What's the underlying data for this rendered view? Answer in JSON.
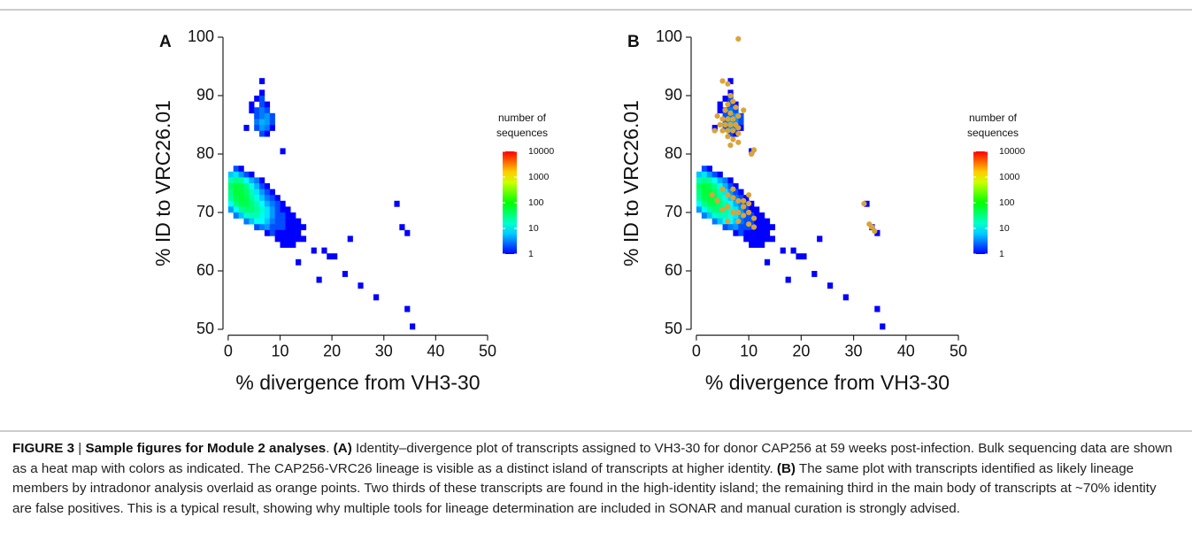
{
  "chart_data": [
    {
      "type": "heatmap",
      "panel_label": "A",
      "xlabel": "% divergence from VH3-30",
      "ylabel": "% ID to VRC26.01",
      "xlim": [
        -1,
        50
      ],
      "ylim": [
        49,
        100
      ],
      "xticks": [
        0,
        10,
        20,
        30,
        40,
        50
      ],
      "yticks": [
        50,
        60,
        70,
        80,
        90,
        100
      ],
      "colorbar_title": [
        "number of",
        "sequences"
      ],
      "color_scale": "log",
      "colorlim": [
        1,
        10000
      ],
      "colorticks": [
        1,
        10,
        100,
        1000,
        10000
      ],
      "cells": {
        "x": [
          1,
          2,
          0,
          1,
          2,
          3,
          4,
          0,
          1,
          2,
          3,
          4,
          5,
          6,
          0,
          1,
          2,
          3,
          4,
          5,
          6,
          7,
          0,
          1,
          2,
          3,
          4,
          5,
          6,
          7,
          8,
          0,
          1,
          2,
          3,
          4,
          5,
          6,
          7,
          8,
          9,
          0,
          1,
          2,
          3,
          4,
          5,
          6,
          7,
          8,
          9,
          10,
          0,
          1,
          2,
          3,
          4,
          5,
          6,
          7,
          8,
          9,
          10,
          11,
          1,
          2,
          3,
          4,
          5,
          6,
          7,
          8,
          9,
          10,
          11,
          12,
          3,
          4,
          5,
          6,
          7,
          8,
          9,
          10,
          11,
          12,
          13,
          5,
          6,
          7,
          8,
          9,
          10,
          11,
          12,
          13,
          14,
          7,
          8,
          9,
          10,
          11,
          12,
          13,
          9,
          10,
          11,
          12,
          13,
          14,
          10,
          11,
          12,
          6,
          6,
          5,
          6,
          4,
          6,
          7,
          4,
          5,
          6,
          7,
          5,
          6,
          7,
          8,
          5,
          6,
          7,
          8,
          3,
          5,
          6,
          7,
          8,
          6,
          7,
          10,
          23,
          16,
          18,
          19,
          20,
          13,
          17,
          22,
          25,
          28,
          32,
          33,
          34,
          34,
          35
        ],
        "y": [
          77,
          77,
          76,
          76,
          76,
          76,
          76,
          75,
          75,
          75,
          75,
          75,
          75,
          75,
          74,
          74,
          74,
          74,
          74,
          74,
          74,
          74,
          73,
          73,
          73,
          73,
          73,
          73,
          73,
          73,
          73,
          72,
          72,
          72,
          72,
          72,
          72,
          72,
          72,
          72,
          72,
          71,
          71,
          71,
          71,
          71,
          71,
          71,
          71,
          71,
          71,
          71,
          70,
          70,
          70,
          70,
          70,
          70,
          70,
          70,
          70,
          70,
          70,
          70,
          69,
          69,
          69,
          69,
          69,
          69,
          69,
          69,
          69,
          69,
          69,
          69,
          68,
          68,
          68,
          68,
          68,
          68,
          68,
          68,
          68,
          68,
          68,
          67,
          67,
          67,
          67,
          67,
          67,
          67,
          67,
          67,
          67,
          66,
          66,
          66,
          66,
          66,
          66,
          66,
          65,
          65,
          65,
          65,
          65,
          65,
          64,
          64,
          64,
          92,
          90,
          89,
          89,
          88,
          88,
          88,
          87,
          87,
          87,
          87,
          86,
          86,
          86,
          86,
          85,
          85,
          85,
          85,
          84,
          84,
          84,
          84,
          84,
          83,
          83,
          80,
          65,
          63,
          63,
          62,
          62,
          61,
          58,
          59,
          57,
          55,
          71,
          67,
          66,
          53,
          50
        ],
        "values": [
          2,
          1,
          6,
          8,
          4,
          2,
          1,
          20,
          30,
          25,
          10,
          5,
          3,
          1,
          40,
          60,
          50,
          30,
          12,
          5,
          2,
          1,
          30,
          60,
          60,
          40,
          20,
          8,
          4,
          2,
          1,
          25,
          50,
          60,
          50,
          25,
          12,
          6,
          3,
          2,
          1,
          10,
          30,
          50,
          50,
          35,
          20,
          10,
          5,
          3,
          2,
          1,
          4,
          10,
          25,
          35,
          35,
          25,
          15,
          8,
          4,
          2,
          1,
          1,
          3,
          6,
          15,
          20,
          20,
          12,
          8,
          4,
          2,
          2,
          1,
          1,
          3,
          6,
          10,
          10,
          6,
          3,
          2,
          2,
          1,
          1,
          1,
          2,
          3,
          4,
          2,
          2,
          2,
          1,
          1,
          1,
          1,
          1,
          2,
          1,
          1,
          1,
          1,
          1,
          1,
          1,
          1,
          1,
          1,
          1,
          1,
          1,
          1,
          1,
          1,
          1,
          2,
          1,
          2,
          1,
          1,
          2,
          3,
          2,
          2,
          3,
          4,
          2,
          3,
          5,
          4,
          2,
          1,
          2,
          4,
          3,
          1,
          2,
          1,
          1,
          1,
          1,
          1,
          1,
          1,
          1,
          1,
          1,
          1,
          1,
          1,
          1,
          1,
          1,
          1
        ]
      }
    },
    {
      "type": "heatmap",
      "panel_label": "B",
      "xlabel": "% divergence from VH3-30",
      "ylabel": "% ID to VRC26.01",
      "xlim": [
        -1,
        50
      ],
      "ylim": [
        49,
        100
      ],
      "xticks": [
        0,
        10,
        20,
        30,
        40,
        50
      ],
      "yticks": [
        50,
        60,
        70,
        80,
        90,
        100
      ],
      "colorbar_title": [
        "number of",
        "sequences"
      ],
      "color_scale": "log",
      "colorlim": [
        1,
        10000
      ],
      "colorticks": [
        1,
        10,
        100,
        1000,
        10000
      ],
      "cells": {
        "x": [
          1,
          2,
          0,
          1,
          2,
          3,
          4,
          0,
          1,
          2,
          3,
          4,
          5,
          6,
          0,
          1,
          2,
          3,
          4,
          5,
          6,
          7,
          0,
          1,
          2,
          3,
          4,
          5,
          6,
          7,
          8,
          0,
          1,
          2,
          3,
          4,
          5,
          6,
          7,
          8,
          9,
          0,
          1,
          2,
          3,
          4,
          5,
          6,
          7,
          8,
          9,
          10,
          0,
          1,
          2,
          3,
          4,
          5,
          6,
          7,
          8,
          9,
          10,
          11,
          1,
          2,
          3,
          4,
          5,
          6,
          7,
          8,
          9,
          10,
          11,
          12,
          3,
          4,
          5,
          6,
          7,
          8,
          9,
          10,
          11,
          12,
          13,
          5,
          6,
          7,
          8,
          9,
          10,
          11,
          12,
          13,
          14,
          7,
          8,
          9,
          10,
          11,
          12,
          13,
          9,
          10,
          11,
          12,
          13,
          14,
          10,
          11,
          12,
          6,
          6,
          5,
          6,
          4,
          6,
          7,
          4,
          5,
          6,
          7,
          5,
          6,
          7,
          8,
          5,
          6,
          7,
          8,
          3,
          5,
          6,
          7,
          8,
          6,
          7,
          10,
          23,
          16,
          18,
          19,
          20,
          13,
          17,
          22,
          25,
          28,
          32,
          33,
          34,
          34,
          35
        ],
        "y": [
          77,
          77,
          76,
          76,
          76,
          76,
          76,
          75,
          75,
          75,
          75,
          75,
          75,
          75,
          74,
          74,
          74,
          74,
          74,
          74,
          74,
          74,
          73,
          73,
          73,
          73,
          73,
          73,
          73,
          73,
          73,
          72,
          72,
          72,
          72,
          72,
          72,
          72,
          72,
          72,
          72,
          71,
          71,
          71,
          71,
          71,
          71,
          71,
          71,
          71,
          71,
          71,
          70,
          70,
          70,
          70,
          70,
          70,
          70,
          70,
          70,
          70,
          70,
          70,
          69,
          69,
          69,
          69,
          69,
          69,
          69,
          69,
          69,
          69,
          69,
          69,
          68,
          68,
          68,
          68,
          68,
          68,
          68,
          68,
          68,
          68,
          68,
          67,
          67,
          67,
          67,
          67,
          67,
          67,
          67,
          67,
          67,
          66,
          66,
          66,
          66,
          66,
          66,
          66,
          65,
          65,
          65,
          65,
          65,
          65,
          64,
          64,
          64,
          92,
          90,
          89,
          89,
          88,
          88,
          88,
          87,
          87,
          87,
          87,
          86,
          86,
          86,
          86,
          85,
          85,
          85,
          85,
          84,
          84,
          84,
          84,
          84,
          83,
          83,
          80,
          65,
          63,
          63,
          62,
          62,
          61,
          58,
          59,
          57,
          55,
          71,
          67,
          66,
          53,
          50
        ],
        "values": [
          2,
          1,
          6,
          8,
          4,
          2,
          1,
          20,
          30,
          25,
          10,
          5,
          3,
          1,
          40,
          60,
          50,
          30,
          12,
          5,
          2,
          1,
          30,
          60,
          60,
          40,
          20,
          8,
          4,
          2,
          1,
          25,
          50,
          60,
          50,
          25,
          12,
          6,
          3,
          2,
          1,
          10,
          30,
          50,
          50,
          35,
          20,
          10,
          5,
          3,
          2,
          1,
          4,
          10,
          25,
          35,
          35,
          25,
          15,
          8,
          4,
          2,
          1,
          1,
          3,
          6,
          15,
          20,
          20,
          12,
          8,
          4,
          2,
          2,
          1,
          1,
          3,
          6,
          10,
          10,
          6,
          3,
          2,
          2,
          1,
          1,
          1,
          2,
          3,
          4,
          2,
          2,
          2,
          1,
          1,
          1,
          1,
          1,
          2,
          1,
          1,
          1,
          1,
          1,
          1,
          1,
          1,
          1,
          1,
          1,
          1,
          1,
          1,
          1,
          1,
          1,
          2,
          1,
          2,
          1,
          1,
          2,
          3,
          2,
          2,
          3,
          4,
          2,
          3,
          5,
          4,
          2,
          1,
          2,
          4,
          3,
          1,
          2,
          1,
          1,
          1,
          1,
          1,
          1,
          1,
          1,
          1,
          1,
          1,
          1,
          1,
          1,
          1,
          1,
          1
        ]
      },
      "overlay": {
        "color": "#d9a43a",
        "x": [
          5,
          6,
          6.5,
          7,
          6,
          7.5,
          5.5,
          6.5,
          4,
          5,
          6,
          7,
          8,
          4.5,
          5.5,
          6.5,
          7.5,
          8,
          3.5,
          5,
          6,
          7,
          8,
          6,
          7,
          8,
          6.5,
          9,
          11,
          10.5,
          8,
          5,
          6,
          7,
          8,
          9,
          10,
          6,
          7,
          8,
          9,
          10,
          11,
          4,
          3,
          6,
          11,
          10,
          8,
          5,
          9,
          7,
          10,
          32,
          33,
          33.5,
          34
        ],
        "y": [
          92.5,
          92,
          90,
          89,
          88.5,
          88,
          87.5,
          87,
          86.5,
          86,
          86,
          86,
          86.5,
          85,
          85,
          85,
          85,
          84.5,
          84,
          84,
          84,
          84,
          83.5,
          83,
          82.5,
          82,
          81.5,
          87.5,
          80.7,
          80,
          99.7,
          74,
          73,
          72.5,
          72,
          72,
          71.5,
          71,
          70,
          70,
          69.5,
          70,
          69,
          72,
          73,
          68.5,
          67.5,
          68,
          68.5,
          70.5,
          71,
          74,
          73,
          71.5,
          68,
          67.5,
          66.8
        ]
      }
    }
  ],
  "caption": [
    {
      "text": "FIGURE 3",
      "bold": true
    },
    {
      "text": " | ",
      "bold": false
    },
    {
      "text": "Sample figures for Module 2 analyses",
      "bold": true
    },
    {
      "text": ". ",
      "bold": false
    },
    {
      "text": "(A)",
      "bold": true
    },
    {
      "text": " Identity–divergence plot of transcripts assigned to VH3-30 for donor CAP256 at 59 weeks post-infection. Bulk sequencing data are shown as a heat map with colors as indicated. The CAP256-VRC26 lineage is visible as a distinct island of transcripts at higher identity. ",
      "bold": false
    },
    {
      "text": "(B)",
      "bold": true
    },
    {
      "text": " The same plot with transcripts identified as likely lineage members by intradonor analysis overlaid as orange points. Two thirds of these transcripts are found in the high-identity island; the remaining third in the main body of transcripts at ~70% identity are false positives. This is a typical result, showing why multiple tools for lineage determination are included in SONAR and manual curation is strongly advised.",
      "bold": false
    }
  ]
}
